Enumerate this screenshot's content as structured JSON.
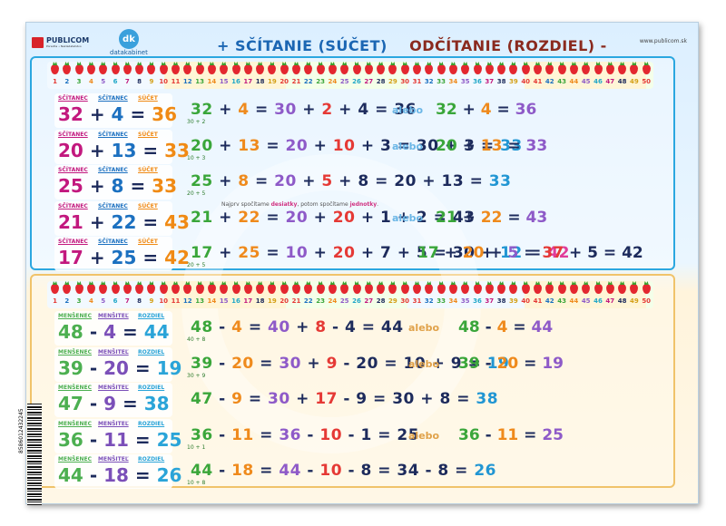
{
  "header": {
    "brand": "PUBLICOM",
    "brand_sub": "Poradňa • Nakladateľstvo",
    "dk_logo": "dk",
    "dk_text": "datakabinet",
    "title_plus": "+ SČÍTANIE (SÚČET)",
    "title_minus": "ODČÍTANIE (ROZDIEL) -",
    "website": "www.publicom.sk"
  },
  "numberline": {
    "numbers": [
      "1",
      "2",
      "3",
      "4",
      "5",
      "6",
      "7",
      "8",
      "9",
      "10",
      "11",
      "12",
      "13",
      "14",
      "15",
      "16",
      "17",
      "18",
      "19",
      "20",
      "21",
      "22",
      "23",
      "24",
      "25",
      "26",
      "27",
      "28",
      "29",
      "30",
      "31",
      "32",
      "33",
      "34",
      "35",
      "36",
      "37",
      "38",
      "39",
      "40",
      "41",
      "42",
      "43",
      "44",
      "45",
      "46",
      "47",
      "48",
      "49",
      "50"
    ]
  },
  "addition": {
    "labels": {
      "a": "SČÍTANEC",
      "b": "SČÍTANEC",
      "r": "SÚČET"
    },
    "rows": [
      {
        "a": "32",
        "op": "+",
        "b": "4",
        "eq": "=",
        "r": "36",
        "expr": "32 + 4 = 30 + 2 + 4 = 36",
        "hint": "30 + 2",
        "alebo": "alebo",
        "alt": "32 + 4 = 36"
      },
      {
        "a": "20",
        "op": "+",
        "b": "13",
        "eq": "=",
        "r": "33",
        "expr": "20 + 13 = 20 + 10 + 3 = 30 + 3 = 33",
        "hint": "10 + 3",
        "alebo": "alebo",
        "alt": "20 + 13 = 33"
      },
      {
        "a": "25",
        "op": "+",
        "b": "8",
        "eq": "=",
        "r": "33",
        "expr": "25 + 8 = 20 + 5 + 8 = 20 + 13 = 33",
        "hint": "20 + 5",
        "alebo": "",
        "alt": ""
      },
      {
        "a": "21",
        "op": "+",
        "b": "22",
        "eq": "=",
        "r": "43",
        "expr": "21 + 22 = 20 + 20 + 1 + 2 = 43",
        "hint": "",
        "alebo": "alebo",
        "alt": "21 + 22 = 43"
      },
      {
        "a": "17",
        "op": "+",
        "b": "25",
        "eq": "=",
        "r": "42",
        "expr": "17 + 25 = 10 + 20 + 7 + 5 = 30 + 12 = 42",
        "hint": "20 + 5",
        "alebo": "",
        "alt": "17 + 20 + 5 = 37 + 5 = 42"
      }
    ],
    "note_prefix": "Najprv spočítame",
    "note_tens": "desiatky",
    "note_mid": ", potom spočítame",
    "note_units": "jednotky",
    "note_end": "."
  },
  "subtraction": {
    "labels": {
      "a": "MENŠENEC",
      "b": "MENŠITEĽ",
      "r": "ROZDIEL"
    },
    "rows": [
      {
        "a": "48",
        "op": "-",
        "b": "4",
        "eq": "=",
        "r": "44",
        "expr": "48 - 4 = 40 + 8 - 4 = 44",
        "hint": "40 + 8",
        "alebo": "alebo",
        "alt": "48 - 4 = 44"
      },
      {
        "a": "39",
        "op": "-",
        "b": "20",
        "eq": "=",
        "r": "19",
        "expr": "39 - 20 = 30 + 9 - 20 = 10 + 9 = 19",
        "hint": "30 + 9",
        "alebo": "alebo",
        "alt": "39 - 20 = 19"
      },
      {
        "a": "47",
        "op": "-",
        "b": "9",
        "eq": "=",
        "r": "38",
        "expr": "47 - 9 = 30 + 17 - 9 = 30 + 8 = 38",
        "hint": "",
        "alebo": "",
        "alt": ""
      },
      {
        "a": "36",
        "op": "-",
        "b": "11",
        "eq": "=",
        "r": "25",
        "expr": "36 - 11 = 36 - 10 - 1 = 25",
        "hint": "10 + 1",
        "alebo": "alebo",
        "alt": "36 - 11 = 25"
      },
      {
        "a": "44",
        "op": "-",
        "b": "18",
        "eq": "=",
        "r": "26",
        "expr": "44 - 18 = 44 - 10 - 8 = 34 - 8 = 26",
        "hint": "10 + 8",
        "alebo": "",
        "alt": ""
      }
    ]
  },
  "barcode_text": "8586012432245"
}
